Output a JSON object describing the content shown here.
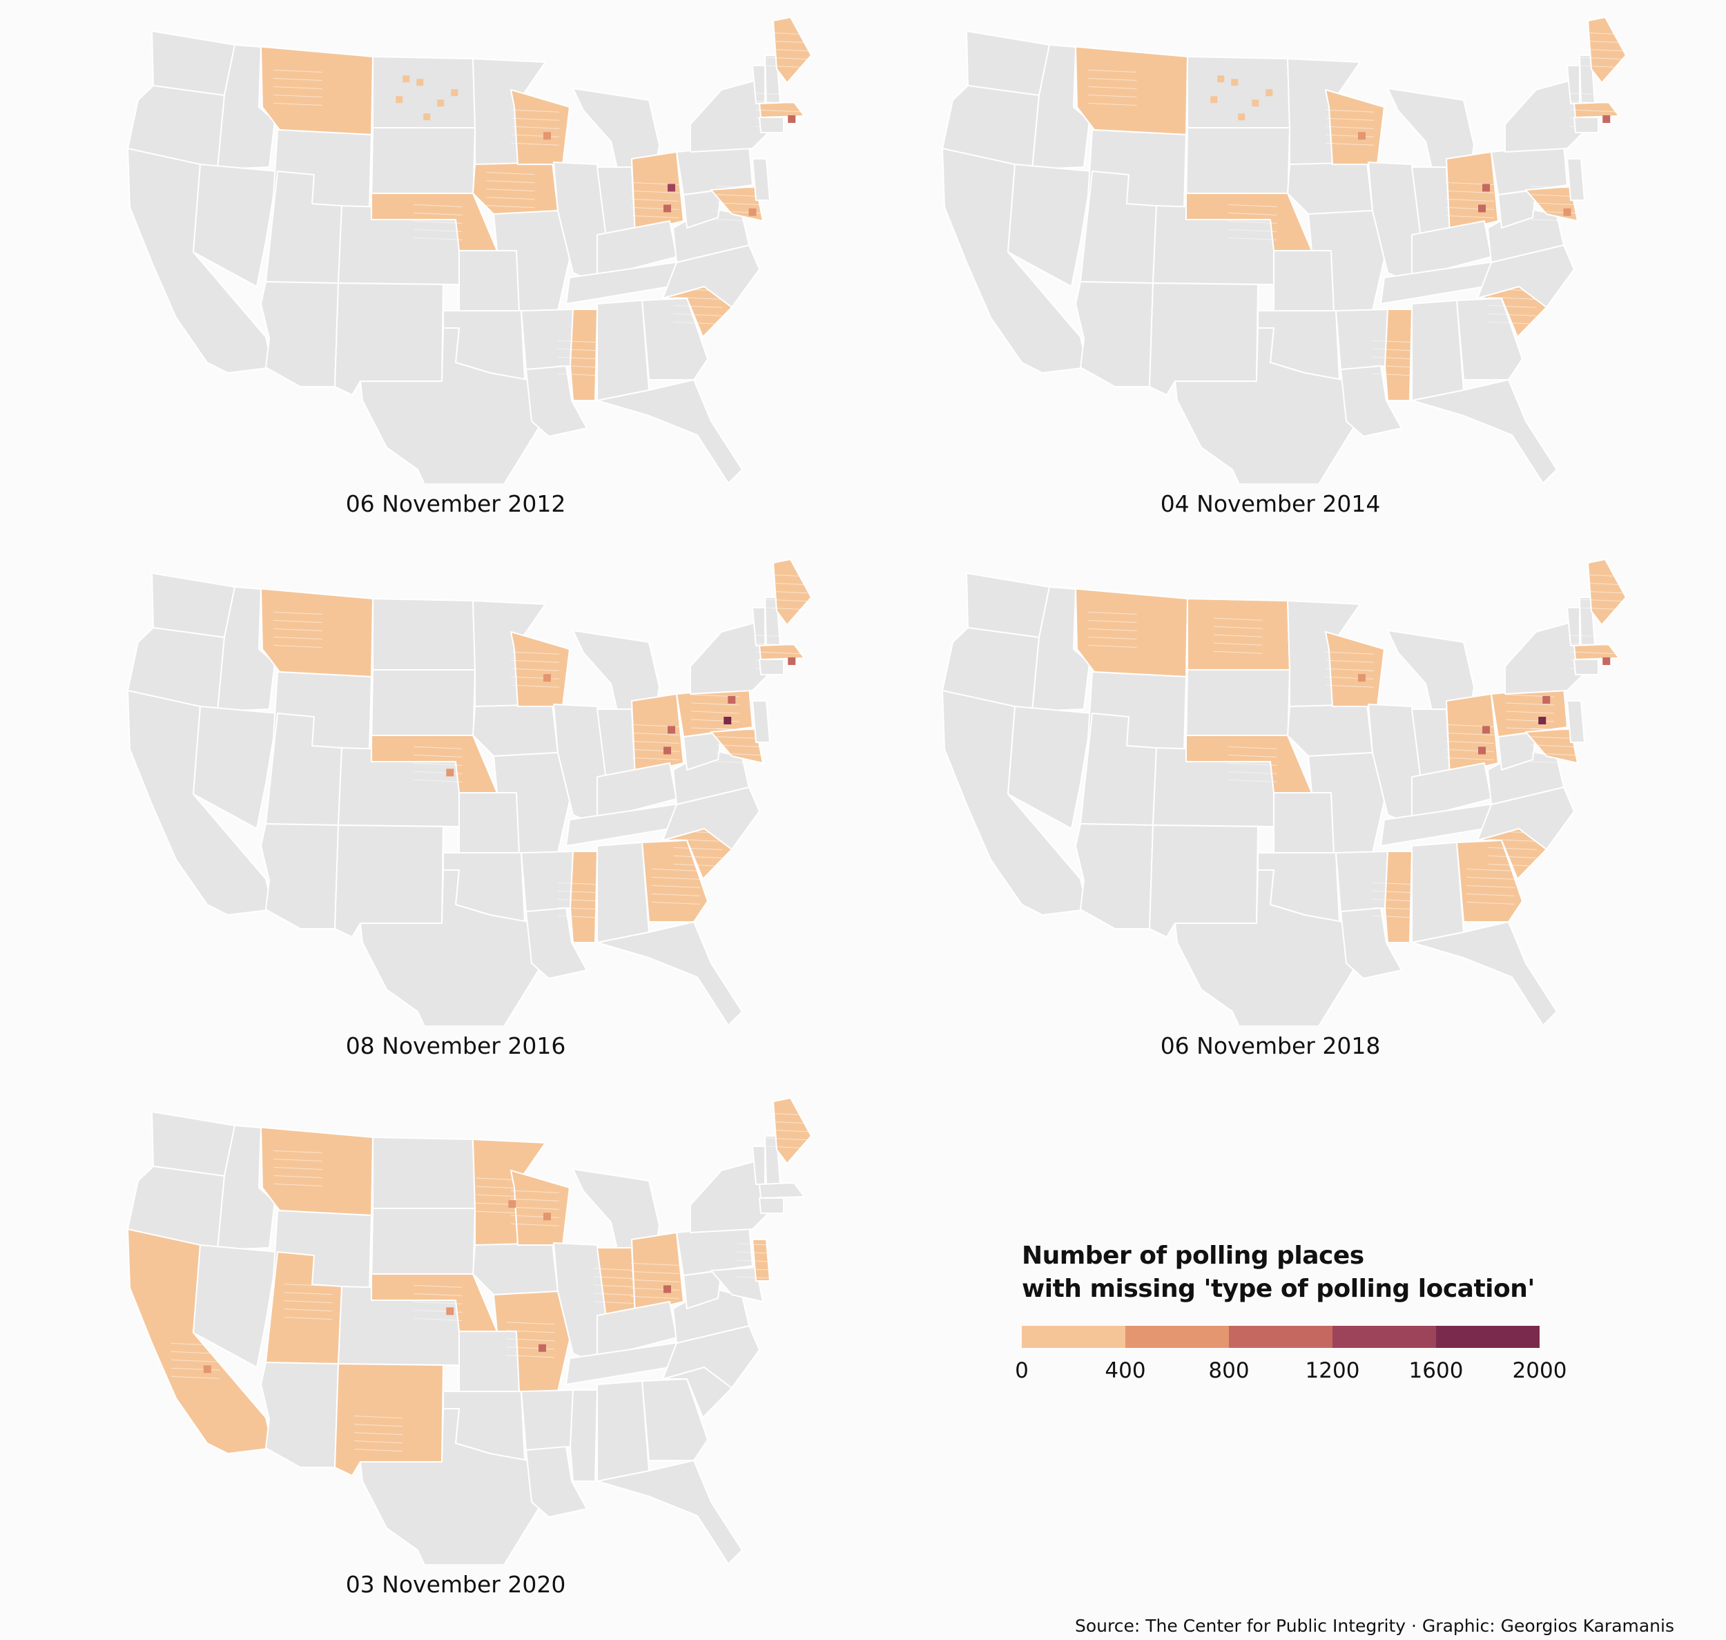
{
  "map_data": {
    "panels": [
      {
        "id": "p2012",
        "title": "06 November 2012",
        "states": {
          "MT": 0,
          "ND": -1,
          "WI": 0,
          "NE": 0,
          "IA": 0,
          "OH": 0,
          "ME": 0,
          "MA": 1,
          "MD": 0,
          "MS": 0,
          "SC": 0
        },
        "hotspots": [
          {
            "state": "WI",
            "bin": 1
          },
          {
            "state": "OH",
            "bin": 2
          },
          {
            "state": "OH",
            "bin": 3
          },
          {
            "state": "MA",
            "bin": 2
          },
          {
            "state": "MD",
            "bin": 1
          }
        ]
      },
      {
        "id": "p2014",
        "title": "04 November 2014",
        "states": {
          "MT": 0,
          "ND": -1,
          "WI": 0,
          "NE": 0,
          "OH": 0,
          "ME": 0,
          "MA": 1,
          "MD": 0,
          "MS": 0,
          "SC": 0
        },
        "hotspots": [
          {
            "state": "WI",
            "bin": 1
          },
          {
            "state": "OH",
            "bin": 2
          },
          {
            "state": "OH",
            "bin": 2
          },
          {
            "state": "MA",
            "bin": 2
          },
          {
            "state": "MD",
            "bin": 1
          }
        ]
      },
      {
        "id": "p2016",
        "title": "08 November 2016",
        "states": {
          "MT": 0,
          "WI": 0,
          "NE": 0,
          "OH": 0,
          "PA": 0,
          "ME": 0,
          "MA": 1,
          "MD": 0,
          "MS": 0,
          "GA": 0,
          "SC": 0
        },
        "hotspots": [
          {
            "state": "WI",
            "bin": 1
          },
          {
            "state": "NE",
            "bin": 1
          },
          {
            "state": "OH",
            "bin": 2
          },
          {
            "state": "OH",
            "bin": 2
          },
          {
            "state": "PA",
            "bin": 4
          },
          {
            "state": "PA",
            "bin": 2
          },
          {
            "state": "MA",
            "bin": 2
          }
        ]
      },
      {
        "id": "p2018",
        "title": "06 November 2018",
        "states": {
          "MT": 0,
          "ND": 0,
          "WI": 0,
          "NE": 0,
          "OH": 0,
          "PA": 0,
          "ME": 0,
          "MA": 1,
          "MD": 0,
          "MS": 0,
          "GA": 0,
          "SC": 0
        },
        "hotspots": [
          {
            "state": "WI",
            "bin": 1
          },
          {
            "state": "OH",
            "bin": 2
          },
          {
            "state": "OH",
            "bin": 2
          },
          {
            "state": "PA",
            "bin": 4
          },
          {
            "state": "PA",
            "bin": 2
          },
          {
            "state": "MA",
            "bin": 2
          }
        ]
      },
      {
        "id": "p2020",
        "title": "03 November 2020",
        "states": {
          "MT": 0,
          "CA": 0,
          "UT": 0,
          "NM": 0,
          "MN": 0,
          "WI": 0,
          "NE": 0,
          "MO": 0,
          "IN": 0,
          "OH": 0,
          "ME": 0,
          "NJ": 0
        },
        "hotspots": [
          {
            "state": "CA",
            "bin": 1
          },
          {
            "state": "MN",
            "bin": 1
          },
          {
            "state": "WI",
            "bin": 1
          },
          {
            "state": "NE",
            "bin": 1
          },
          {
            "state": "MO",
            "bin": 2
          },
          {
            "state": "OH",
            "bin": 2
          }
        ]
      }
    ],
    "empty_color": "#e5e5e5",
    "border_color": "#ffffff"
  },
  "legend": {
    "title_line1": "Number of polling places",
    "title_line2": "with missing 'type of polling location'",
    "bins": [
      {
        "from": 0,
        "to": 400,
        "color": "#f5c598"
      },
      {
        "from": 400,
        "to": 800,
        "color": "#e39670"
      },
      {
        "from": 800,
        "to": 1200,
        "color": "#c56960"
      },
      {
        "from": 1200,
        "to": 1600,
        "color": "#9e445a"
      },
      {
        "from": 1600,
        "to": 2000,
        "color": "#7a2a4d"
      }
    ],
    "ticks": [
      "0",
      "400",
      "800",
      "1200",
      "1600",
      "2000"
    ]
  },
  "caption": "Source: The Center for Public Integrity · Graphic: Georgios Karamanis"
}
